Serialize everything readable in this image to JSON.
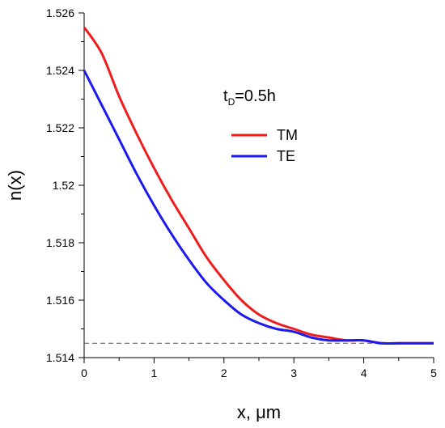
{
  "chart_data": {
    "type": "line",
    "xlabel": "x, μm",
    "ylabel": "n(x)",
    "xlim": [
      0,
      5
    ],
    "ylim": [
      1.514,
      1.526
    ],
    "x_ticks": [
      0,
      1,
      2,
      3,
      4,
      5
    ],
    "x_tick_labels": [
      "0",
      "1",
      "2",
      "3",
      "4",
      "5"
    ],
    "y_ticks": [
      1.514,
      1.516,
      1.518,
      1.52,
      1.522,
      1.524,
      1.526
    ],
    "y_tick_labels": [
      "1.514",
      "1.516",
      "1.518",
      "1.52",
      "1.522",
      "1.524",
      "1.526"
    ],
    "grid": false,
    "legend_position": "upper-right",
    "annotation": {
      "main": "t",
      "sub": "D",
      "rest": "=0.5h"
    },
    "reference_line": {
      "y": 1.5145,
      "style": "dashed",
      "color": "#555555"
    },
    "series": [
      {
        "name": "TM",
        "color": "#ee1c1c",
        "x": [
          0,
          0.25,
          0.5,
          0.75,
          1,
          1.25,
          1.5,
          1.75,
          2,
          2.25,
          2.5,
          2.75,
          3,
          3.25,
          3.5,
          3.75,
          4,
          4.25,
          4.5,
          4.75,
          5
        ],
        "y": [
          1.5255,
          1.5246,
          1.5231,
          1.5218,
          1.5206,
          1.5195,
          1.5185,
          1.5175,
          1.5167,
          1.516,
          1.5155,
          1.5152,
          1.515,
          1.5148,
          1.5147,
          1.5146,
          1.5146,
          1.5145,
          1.5145,
          1.5145,
          1.5145
        ]
      },
      {
        "name": "TE",
        "color": "#1a1aee",
        "x": [
          0,
          0.25,
          0.5,
          0.75,
          1,
          1.25,
          1.5,
          1.75,
          2,
          2.25,
          2.5,
          2.75,
          3,
          3.25,
          3.5,
          3.75,
          4,
          4.25,
          4.5,
          4.75,
          5
        ],
        "y": [
          1.524,
          1.5228,
          1.5216,
          1.5204,
          1.5193,
          1.5183,
          1.5174,
          1.5166,
          1.516,
          1.5155,
          1.5152,
          1.515,
          1.5149,
          1.5147,
          1.5146,
          1.5146,
          1.5146,
          1.5145,
          1.5145,
          1.5145,
          1.5145
        ]
      }
    ]
  }
}
